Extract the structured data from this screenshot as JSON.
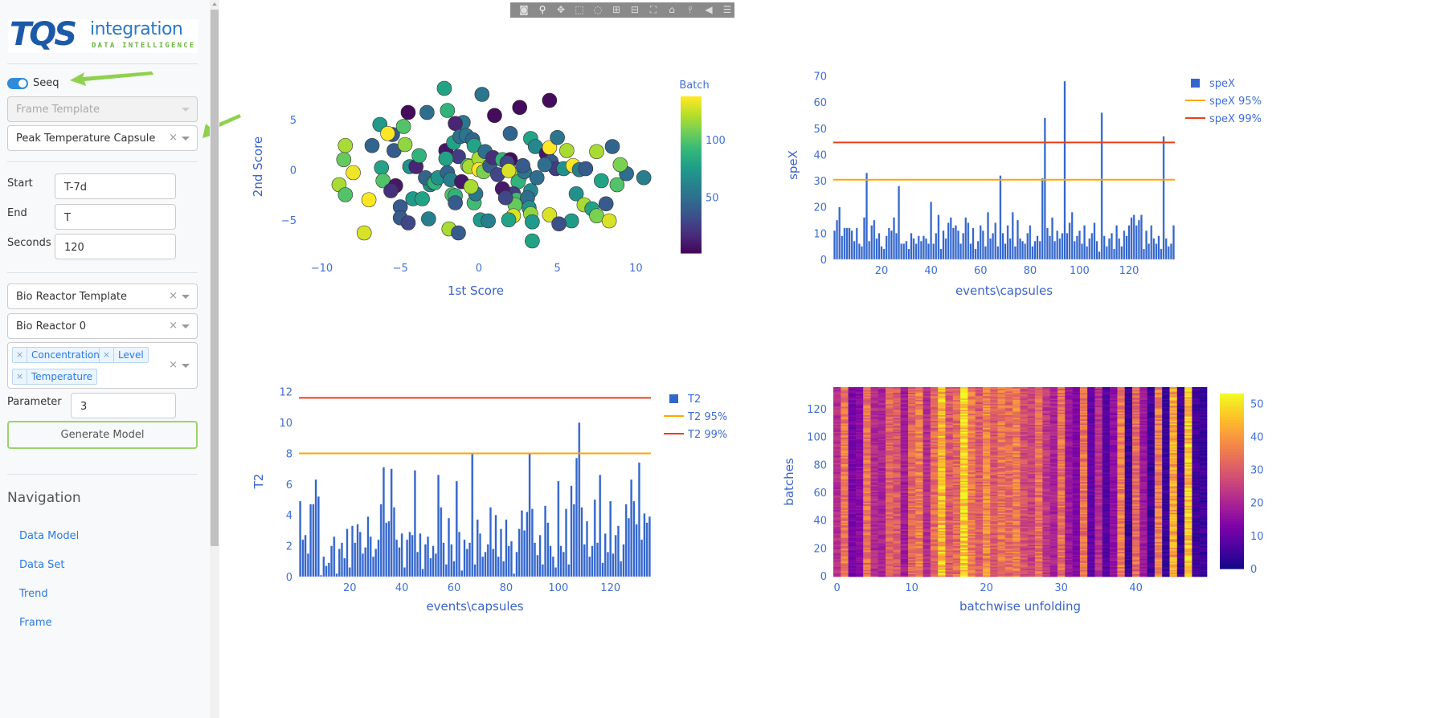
{
  "sidebar": {
    "logo": {
      "mark": "TQS",
      "name": "integration",
      "tagline": "DATA INTELLIGENCE"
    },
    "seeq_toggle": {
      "label": "Seeq",
      "on": true
    },
    "frame_template": {
      "placeholder": "Frame Template"
    },
    "capsule_select": {
      "value": "Peak Temperature Capsule"
    },
    "start": {
      "label": "Start",
      "value": "T-7d"
    },
    "end": {
      "label": "End",
      "value": "T"
    },
    "seconds": {
      "label": "Seconds",
      "value": "120"
    },
    "template_select": {
      "value": "Bio Reactor Template"
    },
    "asset_select": {
      "value": "Bio Reactor 0"
    },
    "signals": [
      "Concentration",
      "Level",
      "Temperature"
    ],
    "parameter": {
      "label": "Parameter",
      "value": "3"
    },
    "generate_button": "Generate Model",
    "navigation": {
      "title": "Navigation",
      "links": [
        "Data Model",
        "Data Set",
        "Trend",
        "Frame"
      ]
    }
  },
  "toolbar": {
    "icons": [
      "camera-icon",
      "zoom-icon",
      "pan-icon",
      "box-select-icon",
      "lasso-icon",
      "zoom-in-icon",
      "zoom-out-icon",
      "autoscale-icon",
      "home-icon",
      "spike-lines-icon",
      "hover-closest-icon",
      "hover-compare-icon"
    ]
  },
  "colors": {
    "accent": "#2a7ae2",
    "bars": "#3366cc",
    "limit95": "#ffa500",
    "limit99": "#e8401c",
    "arrow": "#8fd14f"
  },
  "chart_data": [
    {
      "type": "scatter",
      "xlabel": "1st Score",
      "ylabel": "2nd Score",
      "xlim": [
        -11.2,
        10.8
      ],
      "ylim": [
        -8.7,
        9.3
      ],
      "xticks": [
        -10,
        -5,
        0,
        5,
        10
      ],
      "yticks": [
        -5,
        0,
        5
      ],
      "colorbar": {
        "title": "Batch",
        "ticks": [
          50,
          100
        ],
        "range": [
          1,
          138
        ],
        "colorscale": "viridis"
      },
      "points": [
        [
          -2.2,
          8.1,
          80
        ],
        [
          0.2,
          7.5,
          55
        ],
        [
          4.5,
          6.9,
          5
        ],
        [
          -4.5,
          5.7,
          5
        ],
        [
          -3.3,
          5.7,
          50
        ],
        [
          -1.0,
          4.7,
          55
        ],
        [
          -2.0,
          5.9,
          90
        ],
        [
          -1.5,
          4.6,
          15
        ],
        [
          2.6,
          6.2,
          5
        ],
        [
          1.0,
          5.4,
          5
        ],
        [
          2.0,
          3.6,
          45
        ],
        [
          -6.3,
          4.5,
          75
        ],
        [
          -5.5,
          3.5,
          40
        ],
        [
          -5.8,
          3.6,
          138
        ],
        [
          -4.8,
          4.3,
          100
        ],
        [
          -8.5,
          2.4,
          120
        ],
        [
          -8.6,
          1.0,
          105
        ],
        [
          -8.0,
          -0.3,
          135
        ],
        [
          -8.9,
          -1.5,
          120
        ],
        [
          -8.5,
          -2.5,
          100
        ],
        [
          -6.8,
          2.4,
          45
        ],
        [
          -6.2,
          0.2,
          80
        ],
        [
          -6.1,
          -1.1,
          100
        ],
        [
          -5.4,
          1.9,
          40
        ],
        [
          -4.7,
          2.5,
          115
        ],
        [
          -5.3,
          -1.6,
          10
        ],
        [
          -5.6,
          -2.1,
          20
        ],
        [
          -4.2,
          -2.9,
          75
        ],
        [
          -3.6,
          -2.9,
          80
        ],
        [
          -5.0,
          -3.7,
          40
        ],
        [
          -7.0,
          -3.0,
          138
        ],
        [
          -3.1,
          -1.5,
          70
        ],
        [
          -4.4,
          0.3,
          70
        ],
        [
          -4.0,
          0.3,
          15
        ],
        [
          -3.8,
          1.4,
          90
        ],
        [
          -3.4,
          -0.8,
          45
        ],
        [
          -2.9,
          -1.3,
          80
        ],
        [
          -2.8,
          -1.3,
          90
        ],
        [
          -2.6,
          -0.8,
          70
        ],
        [
          -2.0,
          -0.3,
          45
        ],
        [
          -1.8,
          -1.0,
          60
        ],
        [
          -1.7,
          -2.5,
          100
        ],
        [
          -1.5,
          -2.6,
          90
        ],
        [
          -1.5,
          -3.3,
          40
        ],
        [
          -2.1,
          1.9,
          10
        ],
        [
          -1.3,
          1.3,
          25
        ],
        [
          -2.1,
          1.1,
          80
        ],
        [
          -1.6,
          2.7,
          80
        ],
        [
          -1.2,
          3.3,
          50
        ],
        [
          -0.8,
          3.4,
          55
        ],
        [
          -0.4,
          3.0,
          45
        ],
        [
          -0.3,
          2.4,
          80
        ],
        [
          -0.7,
          0.4,
          100
        ],
        [
          -0.6,
          0.3,
          120
        ],
        [
          0.0,
          1.1,
          120
        ],
        [
          0.0,
          0.0,
          138
        ],
        [
          0.3,
          -0.2,
          110
        ],
        [
          0.7,
          0.4,
          40
        ],
        [
          0.4,
          1.8,
          50
        ],
        [
          0.9,
          1.2,
          20
        ],
        [
          1.2,
          -0.5,
          30
        ],
        [
          1.5,
          1.0,
          90
        ],
        [
          2.0,
          1.0,
          5
        ],
        [
          1.8,
          0.7,
          30
        ],
        [
          2.6,
          -0.7,
          120
        ],
        [
          2.5,
          -1.2,
          90
        ],
        [
          2.2,
          -2.4,
          25
        ],
        [
          2.4,
          -3.0,
          95
        ],
        [
          2.3,
          -3.5,
          105
        ],
        [
          2.2,
          -4.6,
          130
        ],
        [
          1.9,
          -5.0,
          80
        ],
        [
          2.9,
          -0.2,
          55
        ],
        [
          2.8,
          0.4,
          40
        ],
        [
          3.3,
          -2.1,
          65
        ],
        [
          3.1,
          -2.8,
          50
        ],
        [
          3.2,
          -3.8,
          70
        ],
        [
          3.3,
          -4.4,
          115
        ],
        [
          3.4,
          -5.2,
          75
        ],
        [
          3.4,
          -7.1,
          80
        ],
        [
          4.5,
          -4.5,
          130
        ],
        [
          3.7,
          -0.8,
          50
        ],
        [
          3.3,
          3.1,
          80
        ],
        [
          3.6,
          2.3,
          65
        ],
        [
          4.3,
          1.6,
          10
        ],
        [
          4.5,
          2.2,
          138
        ],
        [
          4.6,
          0.8,
          40
        ],
        [
          4.9,
          0.1,
          25
        ],
        [
          5.4,
          0.1,
          70
        ],
        [
          5.6,
          1.9,
          120
        ],
        [
          5.0,
          3.2,
          55
        ],
        [
          6.0,
          0.4,
          138
        ],
        [
          6.4,
          0.0,
          60
        ],
        [
          6.8,
          0.1,
          40
        ],
        [
          6.2,
          -2.4,
          70
        ],
        [
          6.7,
          -3.5,
          120
        ],
        [
          7.2,
          -3.9,
          80
        ],
        [
          8.1,
          -3.4,
          40
        ],
        [
          7.5,
          -4.6,
          110
        ],
        [
          8.3,
          -5.1,
          130
        ],
        [
          7.8,
          -1.1,
          80
        ],
        [
          7.5,
          1.8,
          120
        ],
        [
          8.5,
          2.3,
          45
        ],
        [
          9.4,
          -0.4,
          50
        ],
        [
          9.0,
          0.5,
          110
        ],
        [
          8.8,
          -1.5,
          100
        ],
        [
          10.5,
          -0.8,
          60
        ],
        [
          -1.9,
          -5.9,
          120
        ],
        [
          -1.3,
          -6.3,
          40
        ],
        [
          -7.3,
          -6.3,
          130
        ],
        [
          -5.0,
          -4.8,
          40
        ],
        [
          -4.5,
          -5.3,
          30
        ],
        [
          -3.2,
          -4.9,
          60
        ],
        [
          0.1,
          -5.0,
          75
        ],
        [
          0.6,
          -5.1,
          60
        ],
        [
          -0.3,
          -3.3,
          95
        ],
        [
          -0.2,
          -2.4,
          55
        ],
        [
          1.5,
          -1.9,
          10
        ],
        [
          1.7,
          -2.8,
          30
        ],
        [
          -1.1,
          -1.2,
          10
        ],
        [
          -0.5,
          -1.7,
          120
        ],
        [
          1.9,
          -0.1,
          130
        ],
        [
          4.2,
          0.5,
          50
        ],
        [
          5.9,
          -5.1,
          75
        ],
        [
          5.1,
          -5.4,
          35
        ]
      ]
    },
    {
      "type": "bar",
      "xlabel": "events\\capsules",
      "ylabel": "speX",
      "ylim": [
        0,
        72
      ],
      "xticks": [
        20,
        40,
        60,
        80,
        100,
        120
      ],
      "yticks": [
        0,
        10,
        20,
        30,
        40,
        50,
        60,
        70
      ],
      "legend": [
        "speX",
        "speX 95%",
        "speX 99%"
      ],
      "limit95": 30.4,
      "limit99": 44.6,
      "values": [
        11,
        15,
        20,
        9,
        12,
        12,
        12,
        11,
        7,
        12,
        6,
        5,
        16,
        33,
        7,
        13,
        15,
        8,
        10,
        5,
        4,
        9,
        12,
        11,
        16,
        10,
        28,
        6,
        6,
        7,
        4,
        10,
        8,
        6,
        9,
        7,
        9,
        8,
        6,
        22,
        6,
        10,
        17,
        4,
        11,
        8,
        14,
        16,
        12,
        13,
        11,
        6,
        10,
        16,
        14,
        6,
        12,
        4,
        7,
        13,
        11,
        5,
        18,
        8,
        10,
        14,
        5,
        32,
        10,
        6,
        13,
        8,
        18,
        5,
        15,
        8,
        7,
        6,
        10,
        13,
        5,
        7,
        9,
        7,
        31,
        54,
        12,
        9,
        16,
        7,
        11,
        8,
        10,
        68,
        10,
        14,
        18,
        7,
        9,
        11,
        6,
        13,
        5,
        8,
        10,
        14,
        7,
        3,
        56,
        9,
        5,
        8,
        10,
        4,
        13,
        8,
        5,
        11,
        9,
        13,
        16,
        17,
        13,
        15,
        17,
        4,
        11,
        6,
        13,
        8,
        6,
        9,
        4,
        47,
        8,
        5,
        6,
        13
      ]
    },
    {
      "type": "bar",
      "xlabel": "events\\capsules",
      "ylabel": "T2",
      "ylim": [
        0,
        12.4
      ],
      "xticks": [
        20,
        40,
        60,
        80,
        100,
        120
      ],
      "yticks": [
        0,
        2,
        4,
        6,
        8,
        10,
        12
      ],
      "legend": [
        "T2",
        "T2 95%",
        "T2 99%"
      ],
      "limit95": 8.0,
      "limit99": 11.6,
      "values": [
        4.9,
        2.4,
        2.7,
        1.5,
        4.7,
        4.7,
        6.3,
        5.2,
        0.1,
        1.3,
        0.7,
        0.9,
        2.0,
        2.6,
        0.2,
        1.8,
        2.2,
        1.2,
        3.1,
        0.6,
        3.3,
        2.2,
        3.4,
        2.9,
        1.5,
        1.9,
        3.9,
        2.6,
        1.3,
        1.8,
        2.4,
        4.7,
        7.1,
        3.5,
        3.6,
        7.0,
        4.5,
        2.4,
        1.9,
        2.8,
        0.6,
        2.4,
        2.9,
        2.7,
        6.9,
        1.6,
        2.8,
        0.5,
        2.1,
        2.6,
        1.2,
        2.0,
        1.5,
        6.6,
        4.5,
        2.2,
        0.8,
        3.8,
        2.1,
        1.0,
        6.2,
        2.9,
        0.4,
        2.4,
        1.8,
        2.2,
        8.0,
        0.8,
        3.7,
        2.8,
        1.3,
        1.6,
        2.1,
        4.5,
        1.8,
        4.0,
        1.3,
        3.1,
        1.0,
        3.7,
        2.0,
        2.3,
        0.2,
        1.6,
        3.1,
        4.3,
        3.0,
        4.2,
        8.0,
        4.4,
        2.2,
        1.4,
        2.7,
        0.8,
        4.6,
        3.5,
        2.0,
        1.3,
        0.6,
        6.2,
        2.0,
        1.6,
        4.4,
        0.8,
        5.9,
        4.7,
        7.7,
        10.0,
        4.5,
        2.1,
        3.6,
        1.3,
        2.0,
        5.0,
        2.2,
        6.6,
        0.9,
        2.8,
        1.6,
        4.9,
        1.5,
        2.7,
        3.3,
        1.0,
        2.1,
        4.7,
        3.8,
        6.3,
        4.9,
        3.4,
        7.4,
        2.4,
        4.1,
        3.5,
        3.9
      ]
    },
    {
      "type": "heatmap",
      "xlabel": "batchwise unfolding",
      "ylabel": "batches",
      "xticks": [
        0,
        10,
        20,
        30,
        40
      ],
      "yticks": [
        0,
        20,
        40,
        60,
        80,
        100,
        120
      ],
      "rows": 136,
      "colorscale": "plasma",
      "zlim": [
        0,
        53
      ],
      "colorbar_ticks": [
        0,
        10,
        20,
        30,
        40,
        50
      ],
      "column_means": [
        22,
        35,
        13,
        15,
        34,
        22,
        20,
        32,
        30,
        19,
        32,
        36,
        22,
        33,
        45,
        30,
        33,
        48,
        35,
        30,
        38,
        30,
        35,
        33,
        36,
        28,
        26,
        34,
        24,
        20,
        34,
        18,
        14,
        34,
        10,
        22,
        8,
        16,
        36,
        5,
        33,
        18,
        5,
        36,
        5,
        42,
        5,
        46,
        6,
        5
      ]
    }
  ]
}
